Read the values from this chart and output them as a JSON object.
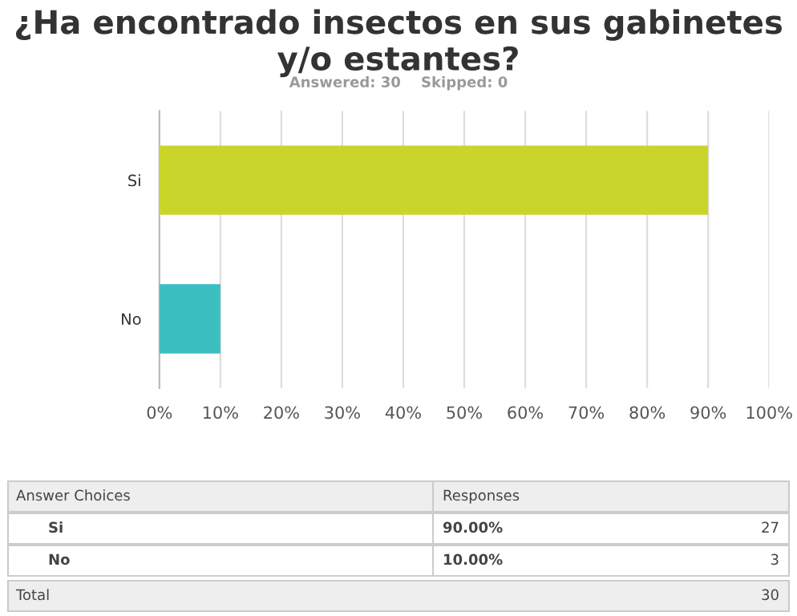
{
  "chart_data": {
    "type": "bar",
    "orientation": "horizontal",
    "title": "¿Ha encontrado insectos en sus gabinetes y/o estantes?",
    "subtitle": "Answered: 30    Skipped: 0",
    "categories": [
      "Si",
      "No"
    ],
    "values": [
      90,
      10
    ],
    "colors": [
      "#c9d52b",
      "#3bbfc0"
    ],
    "xlim": [
      0,
      100
    ],
    "xticks": [
      {
        "value": 0,
        "label": "0%"
      },
      {
        "value": 10,
        "label": "10%"
      },
      {
        "value": 20,
        "label": "20%"
      },
      {
        "value": 30,
        "label": "30%"
      },
      {
        "value": 40,
        "label": "40%"
      },
      {
        "value": 50,
        "label": "50%"
      },
      {
        "value": 60,
        "label": "60%"
      },
      {
        "value": 70,
        "label": "70%"
      },
      {
        "value": 80,
        "label": "80%"
      },
      {
        "value": 90,
        "label": "90%"
      },
      {
        "value": 100,
        "label": "100%"
      }
    ],
    "grid": "x",
    "annotations": [
      "Answer Choices",
      "Responses",
      "90.00%",
      "27",
      "10.00%",
      "3",
      "Total",
      "30"
    ]
  }
}
